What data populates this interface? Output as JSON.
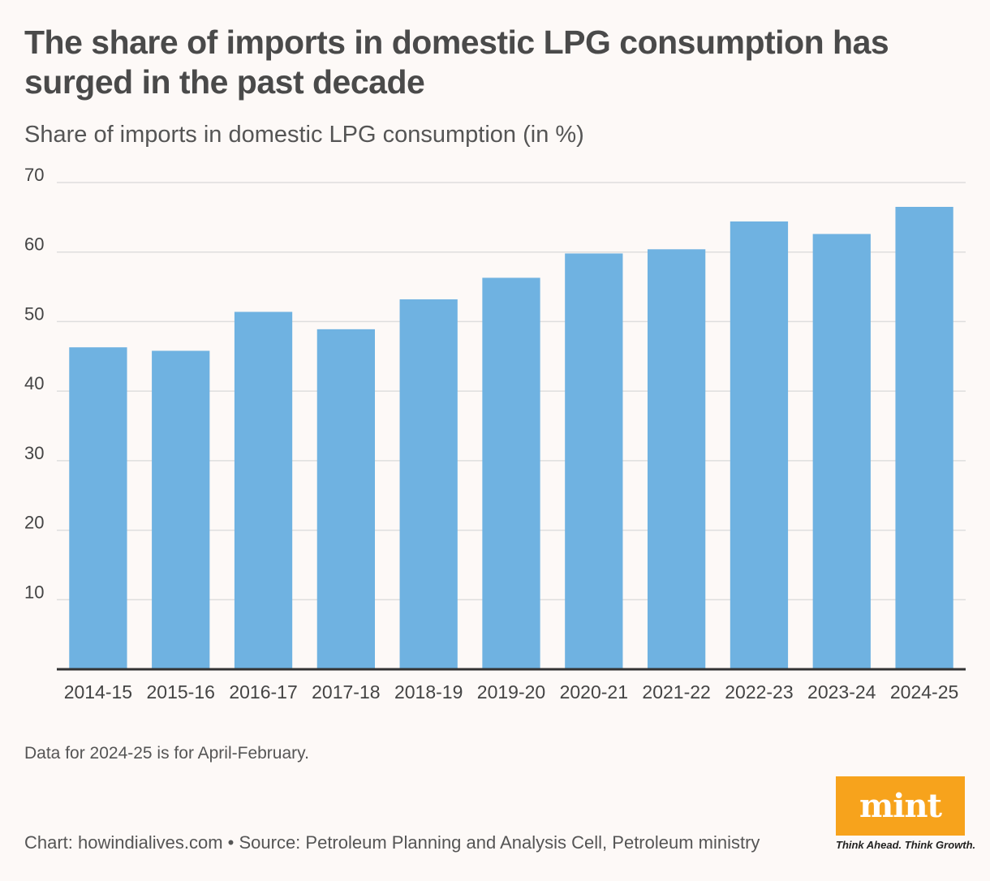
{
  "header": {
    "title": "The share of imports in domestic LPG consumption has surged in the past decade",
    "subtitle": "Share of imports in domestic LPG consumption (in %)"
  },
  "footer": {
    "note": "Data for 2024-25 is for April-February.",
    "credit": "Chart: howindialives.com • Source: Petroleum Planning and Analysis Cell, Petroleum ministry",
    "logo_text": "mint",
    "tagline": "Think Ahead. Think Growth."
  },
  "colors": {
    "bar": "#6fb2e1",
    "grid": "#dedede",
    "axis": "#333333",
    "logo_bg": "#f7a31c"
  },
  "chart_data": {
    "type": "bar",
    "title": "Share of imports in domestic LPG consumption (in %)",
    "xlabel": "",
    "ylabel": "",
    "categories": [
      "2014-15",
      "2015-16",
      "2016-17",
      "2017-18",
      "2018-19",
      "2019-20",
      "2020-21",
      "2021-22",
      "2022-23",
      "2023-24",
      "2024-25"
    ],
    "values": [
      46.3,
      45.8,
      51.4,
      48.9,
      53.2,
      56.3,
      59.8,
      60.4,
      64.4,
      62.6,
      66.5
    ],
    "ylim": [
      0,
      70
    ],
    "yticks": [
      10,
      20,
      30,
      40,
      50,
      60,
      70
    ],
    "grid": true
  }
}
